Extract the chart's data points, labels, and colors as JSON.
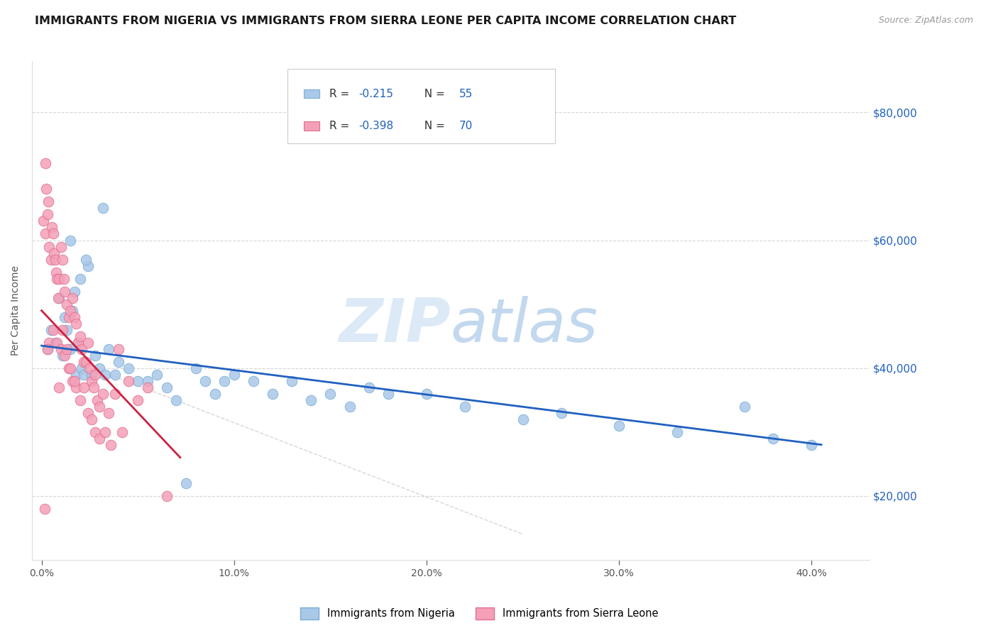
{
  "title": "IMMIGRANTS FROM NIGERIA VS IMMIGRANTS FROM SIERRA LEONE PER CAPITA INCOME CORRELATION CHART",
  "source": "Source: ZipAtlas.com",
  "ylabel": "Per Capita Income",
  "xlabel_ticks": [
    "0.0%",
    "10.0%",
    "20.0%",
    "30.0%",
    "40.0%"
  ],
  "xlabel_vals": [
    0.0,
    10.0,
    20.0,
    30.0,
    40.0
  ],
  "ytick_labels": [
    "$20,000",
    "$40,000",
    "$60,000",
    "$80,000"
  ],
  "ytick_vals": [
    20000,
    40000,
    60000,
    80000
  ],
  "xlim": [
    -0.5,
    43
  ],
  "ylim": [
    10000,
    88000
  ],
  "watermark": "ZIPAtlas",
  "nigeria_color": "#aac8e8",
  "nigeria_edge": "#7aaed8",
  "sierra_color": "#f4a0b8",
  "sierra_edge": "#e07090",
  "trend_nigeria_color": "#2060c0",
  "trend_sierra_color": "#cc2244",
  "text_color": "#333333",
  "legend_text_dark": "#333333",
  "legend_text_blue": "#2060c0",
  "legend1": "Immigrants from Nigeria",
  "legend2": "Immigrants from Sierra Leone",
  "nigeria_x": [
    0.3,
    0.5,
    0.7,
    0.9,
    1.1,
    1.2,
    1.3,
    1.5,
    1.6,
    1.7,
    1.8,
    1.9,
    2.0,
    2.1,
    2.2,
    2.4,
    2.6,
    2.8,
    3.0,
    3.3,
    3.5,
    3.8,
    4.0,
    4.5,
    5.0,
    5.5,
    6.0,
    6.5,
    7.0,
    7.5,
    8.0,
    8.5,
    9.0,
    9.5,
    10.0,
    11.0,
    12.0,
    13.0,
    14.0,
    15.0,
    16.0,
    17.0,
    18.0,
    20.0,
    22.0,
    25.0,
    27.0,
    30.0,
    33.0,
    36.5,
    38.0,
    40.0,
    1.5,
    2.3,
    3.2
  ],
  "nigeria_y": [
    43000,
    46000,
    44000,
    51000,
    42000,
    48000,
    46000,
    43000,
    49000,
    52000,
    39000,
    44000,
    54000,
    40000,
    39000,
    56000,
    39000,
    42000,
    40000,
    39000,
    43000,
    39000,
    41000,
    40000,
    38000,
    38000,
    39000,
    37000,
    35000,
    22000,
    40000,
    38000,
    36000,
    38000,
    39000,
    38000,
    36000,
    38000,
    35000,
    36000,
    34000,
    37000,
    36000,
    36000,
    34000,
    32000,
    33000,
    31000,
    30000,
    34000,
    29000,
    28000,
    60000,
    57000,
    65000
  ],
  "sierra_x": [
    0.1,
    0.2,
    0.25,
    0.3,
    0.35,
    0.4,
    0.5,
    0.55,
    0.6,
    0.65,
    0.7,
    0.75,
    0.8,
    0.85,
    0.9,
    1.0,
    1.1,
    1.15,
    1.2,
    1.3,
    1.4,
    1.5,
    1.6,
    1.7,
    1.8,
    1.9,
    2.0,
    2.1,
    2.2,
    2.3,
    2.4,
    2.5,
    2.6,
    2.7,
    2.8,
    2.9,
    3.0,
    3.2,
    3.5,
    3.8,
    4.0,
    4.5,
    5.0,
    5.5,
    6.5,
    0.2,
    0.4,
    0.6,
    0.8,
    1.0,
    1.2,
    1.4,
    1.6,
    1.8,
    2.0,
    2.2,
    2.4,
    2.6,
    2.8,
    3.0,
    3.3,
    3.6,
    4.2,
    1.1,
    1.3,
    1.5,
    1.7,
    0.9,
    0.3,
    0.15
  ],
  "sierra_y": [
    63000,
    61000,
    68000,
    64000,
    66000,
    59000,
    57000,
    62000,
    61000,
    58000,
    57000,
    55000,
    54000,
    51000,
    54000,
    59000,
    57000,
    54000,
    52000,
    50000,
    48000,
    49000,
    51000,
    48000,
    47000,
    44000,
    45000,
    43000,
    41000,
    41000,
    44000,
    40000,
    38000,
    37000,
    39000,
    35000,
    34000,
    36000,
    33000,
    36000,
    43000,
    38000,
    35000,
    37000,
    20000,
    72000,
    44000,
    46000,
    44000,
    43000,
    42000,
    40000,
    38000,
    37000,
    35000,
    37000,
    33000,
    32000,
    30000,
    29000,
    30000,
    28000,
    30000,
    46000,
    43000,
    40000,
    38000,
    37000,
    43000,
    18000
  ],
  "trend_n_x0": 0.0,
  "trend_n_x1": 40.5,
  "trend_n_y0": 43500,
  "trend_n_y1": 28000,
  "trend_s_x0": 0.0,
  "trend_s_x1": 7.2,
  "trend_s_y0": 49000,
  "trend_s_y1": 26000,
  "dash_x0": 3.5,
  "dash_y0": 39000,
  "dash_x1": 25.0,
  "dash_y1": 14000
}
